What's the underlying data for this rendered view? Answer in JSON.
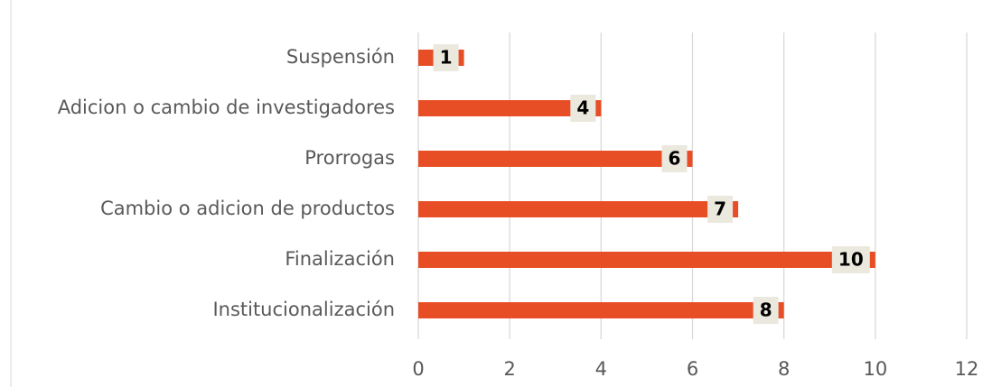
{
  "chart_data": {
    "type": "bar",
    "orientation": "horizontal",
    "categories": [
      "Suspensión",
      "Adicion o cambio de investigadores",
      "Prorrogas",
      "Cambio o adicion de productos",
      "Finalización",
      "Institucionalización"
    ],
    "values": [
      1,
      4,
      6,
      7,
      10,
      8
    ],
    "color": "#e84e25",
    "xlim": [
      0,
      12
    ],
    "xticks": [
      0,
      2,
      4,
      6,
      8,
      10,
      12
    ],
    "grid": true
  }
}
